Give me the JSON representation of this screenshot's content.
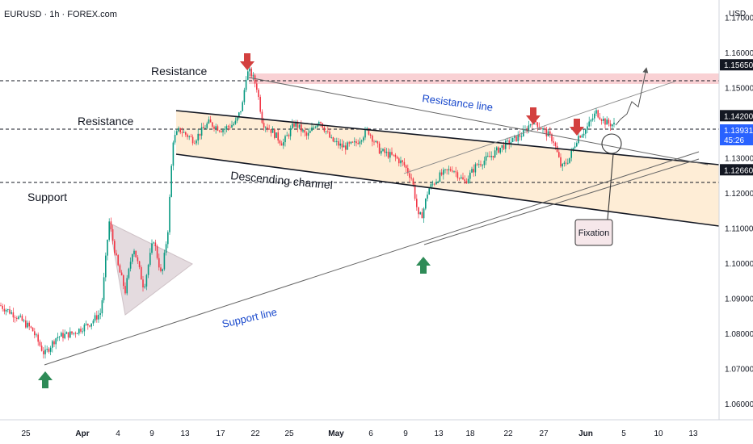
{
  "header": {
    "symbol_line": "EURUSD · 1h · FOREX.com"
  },
  "price_axis": {
    "currency": "USD",
    "ticks": [
      1.06,
      1.07,
      1.08,
      1.09,
      1.1,
      1.11,
      1.12,
      1.13,
      1.15,
      1.16,
      1.17
    ],
    "tick_labels": [
      "1.06000",
      "1.07000",
      "1.08000",
      "1.09000",
      "1.10000",
      "1.11000",
      "1.12000",
      "1.13000",
      "1.15000",
      "1.16000",
      "1.17000"
    ]
  },
  "time_axis": {
    "labels": [
      "25",
      "Apr",
      "4",
      "9",
      "13",
      "17",
      "22",
      "25",
      "May",
      "6",
      "9",
      "13",
      "18",
      "22",
      "27",
      "Jun",
      "5",
      "10",
      "13"
    ],
    "bold": [
      false,
      true,
      false,
      false,
      false,
      false,
      false,
      false,
      true,
      false,
      false,
      false,
      false,
      false,
      false,
      true,
      false,
      false,
      false
    ]
  },
  "price_tags": {
    "resistance_top": {
      "label": "1.15650",
      "price": 1.1565
    },
    "resistance_mid": {
      "label": "1.14200",
      "price": 1.142
    },
    "current": {
      "label": "1.13931",
      "countdown": "45:26",
      "price": 1.13931,
      "color": "#2962ff"
    },
    "support": {
      "label": "1.12660",
      "price": 1.1266
    }
  },
  "annotations": {
    "resistance_top": "Resistance",
    "resistance_mid": "Resistance",
    "support": "Support",
    "descending_channel": "Descending channel",
    "resistance_line": "Resistance line",
    "support_line": "Support line",
    "fixation": "Fixation"
  },
  "colors": {
    "bull": "#089981",
    "bear": "#f23645",
    "arrow_down": "#d3403f",
    "arrow_up": "#2e8b57",
    "zone_fill": "#fde6c4",
    "resistance_zone": "#f8c9cd",
    "triangle_fill": "#d7c9cf"
  },
  "chart_data": {
    "type": "candlestick",
    "symbol": "EURUSD",
    "timeframe": "1h",
    "source": "FOREX.com",
    "y_range": [
      1.0545,
      1.1745
    ],
    "key_levels": [
      1.1565,
      1.142,
      1.1266
    ],
    "current_price": 1.13931,
    "path": [
      [
        0,
        1.088
      ],
      [
        20,
        1.085
      ],
      [
        40,
        1.081
      ],
      [
        55,
        1.074
      ],
      [
        70,
        1.079
      ],
      [
        90,
        1.08
      ],
      [
        112,
        1.083
      ],
      [
        125,
        1.086
      ],
      [
        135,
        1.112
      ],
      [
        145,
        1.1
      ],
      [
        155,
        1.092
      ],
      [
        165,
        1.105
      ],
      [
        178,
        1.093
      ],
      [
        190,
        1.107
      ],
      [
        200,
        1.096
      ],
      [
        208,
        1.11
      ],
      [
        214,
        1.135
      ],
      [
        222,
        1.138
      ],
      [
        240,
        1.135
      ],
      [
        258,
        1.14
      ],
      [
        275,
        1.138
      ],
      [
        292,
        1.14
      ],
      [
        300,
        1.145
      ],
      [
        305,
        1.154
      ],
      [
        310,
        1.1545
      ],
      [
        318,
        1.15
      ],
      [
        325,
        1.14
      ],
      [
        335,
        1.138
      ],
      [
        350,
        1.134
      ],
      [
        365,
        1.14
      ],
      [
        380,
        1.136
      ],
      [
        395,
        1.141
      ],
      [
        410,
        1.135
      ],
      [
        425,
        1.133
      ],
      [
        440,
        1.134
      ],
      [
        455,
        1.138
      ],
      [
        470,
        1.132
      ],
      [
        490,
        1.13
      ],
      [
        500,
        1.128
      ],
      [
        510,
        1.124
      ],
      [
        518,
        1.113
      ],
      [
        523,
        1.114
      ],
      [
        530,
        1.121
      ],
      [
        545,
        1.125
      ],
      [
        560,
        1.127
      ],
      [
        575,
        1.123
      ],
      [
        590,
        1.128
      ],
      [
        605,
        1.13
      ],
      [
        620,
        1.133
      ],
      [
        635,
        1.135
      ],
      [
        648,
        1.137
      ],
      [
        660,
        1.141
      ],
      [
        672,
        1.138
      ],
      [
        685,
        1.135
      ],
      [
        695,
        1.127
      ],
      [
        705,
        1.13
      ],
      [
        715,
        1.136
      ],
      [
        725,
        1.138
      ],
      [
        738,
        1.143
      ],
      [
        750,
        1.14
      ],
      [
        762,
        1.1393
      ]
    ],
    "forecast_path": [
      [
        762,
        1.1393
      ],
      [
        768,
        1.141
      ],
      [
        776,
        1.1425
      ],
      [
        782,
        1.146
      ],
      [
        790,
        1.1445
      ],
      [
        800,
        1.1555
      ]
    ]
  }
}
